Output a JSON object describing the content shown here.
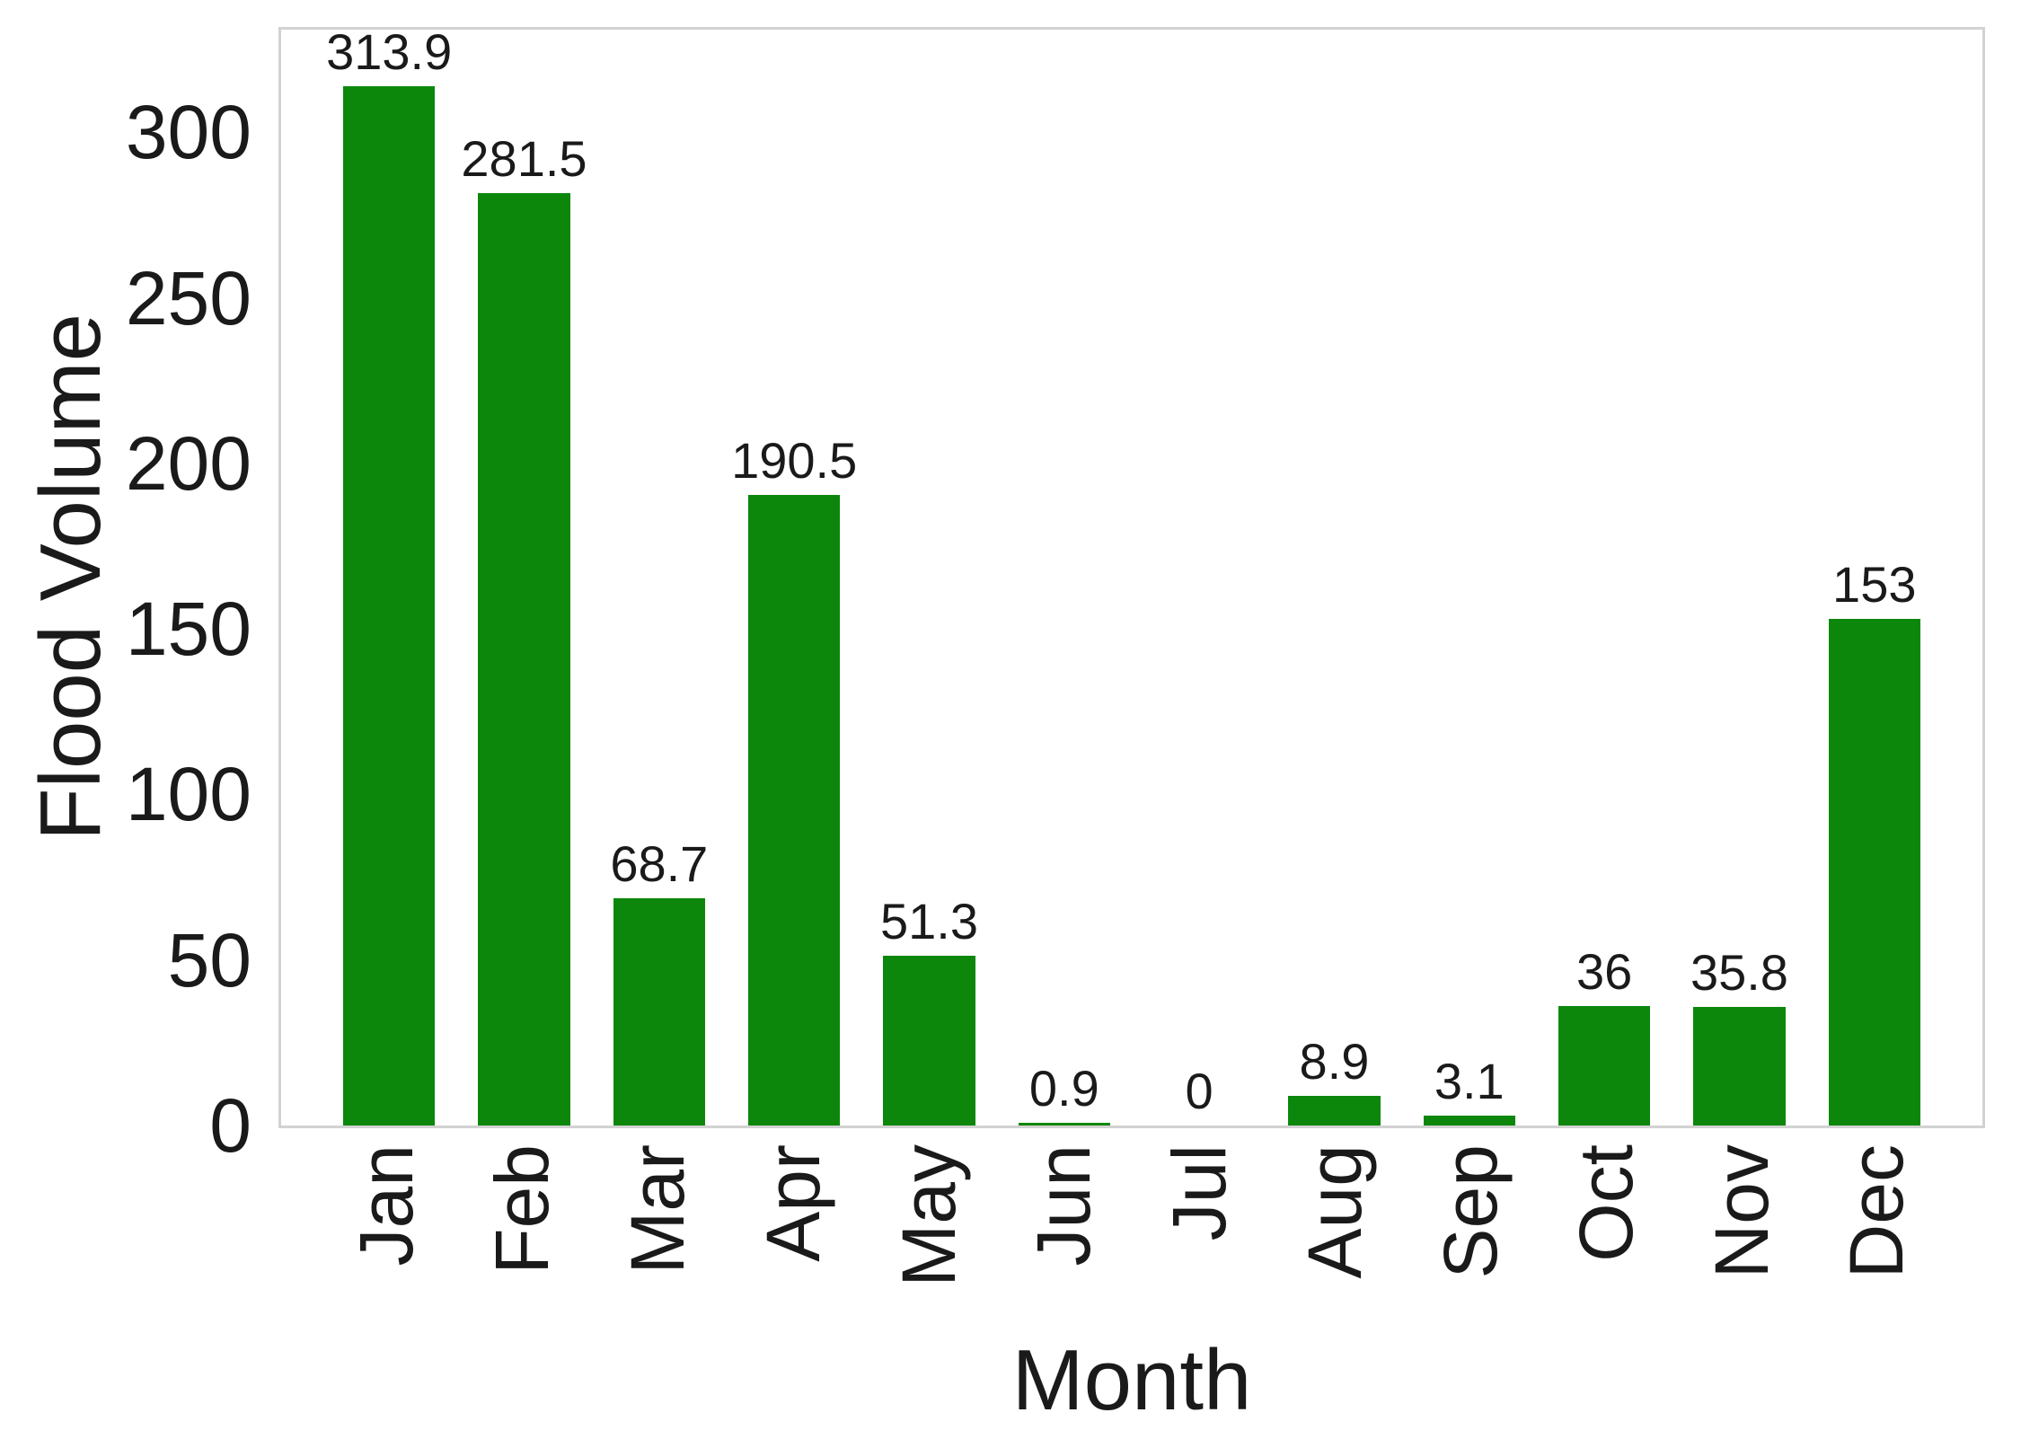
{
  "chart_data": {
    "type": "bar",
    "title": "",
    "xlabel": "Month",
    "ylabel": "Flood Volume",
    "categories": [
      "Jan",
      "Feb",
      "Mar",
      "Apr",
      "May",
      "Jun",
      "Jul",
      "Aug",
      "Sep",
      "Oct",
      "Nov",
      "Dec"
    ],
    "values": [
      313.9,
      281.5,
      68.7,
      190.5,
      51.3,
      0.9,
      0,
      8.9,
      3.1,
      36,
      35.8,
      153
    ],
    "value_labels": [
      "313.9",
      "281.5",
      "68.7",
      "190.5",
      "51.3",
      "0.9",
      "0",
      "8.9",
      "3.1",
      "36",
      "35.8",
      "153"
    ],
    "y_ticks": [
      0,
      50,
      100,
      150,
      200,
      250,
      300
    ],
    "ylim": [
      0,
      331
    ],
    "grid": false,
    "legend": null,
    "bar_color": "#0c870c"
  },
  "colors": {
    "bar": "#0c870c",
    "spine": "#d2d2d2",
    "text": "#1a1a1a",
    "background": "#ffffff"
  }
}
